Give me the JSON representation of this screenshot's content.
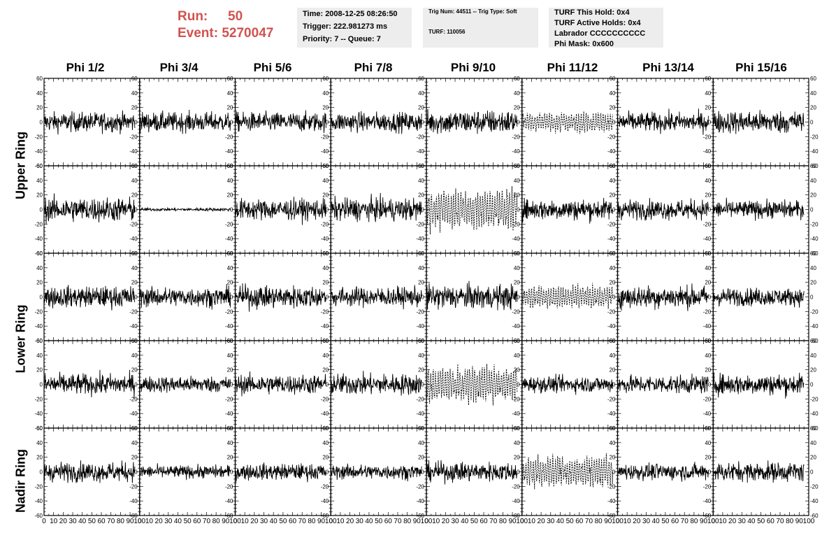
{
  "header": {
    "run_label": "Run:",
    "run_value": "50",
    "event_label": "Event:",
    "event_value": "5270047"
  },
  "info_time": {
    "line1": "Time: 2008-12-25 08:26:50",
    "line2": "Trigger: 222.981273 ms",
    "line3": "Priority: 7 -- Queue: 7"
  },
  "info_trig": {
    "line1": "Trig Num: 44511 -- Trig Type: Soft",
    "line2": "TURF: 110056"
  },
  "info_turf": {
    "line1": "TURF This Hold: 0x4",
    "line2": "TURF Active Holds: 0x4",
    "line3": "Labrador CCCCCCCCCC",
    "line4": "Phi Mask: 0x600"
  },
  "columns": [
    "Phi 1/2",
    "Phi 3/4",
    "Phi 5/6",
    "Phi 7/8",
    "Phi 9/10",
    "Phi 11/12",
    "Phi 13/14",
    "Phi 15/16"
  ],
  "row_labels": [
    "Upper Ring",
    "Lower Ring",
    "Nadir Ring"
  ],
  "colors": {
    "run_text": "#d0534f",
    "info_bg": "#ededed",
    "trace": "#000000"
  },
  "chart_data": {
    "type": "line",
    "description_rows": 5,
    "description_cols": 8,
    "x_range": [
      0,
      100
    ],
    "y_range": [
      -60,
      60
    ],
    "y_ticks": [
      -60,
      -40,
      -20,
      0,
      20,
      40,
      60
    ],
    "x_ticks": [
      0,
      10,
      20,
      30,
      40,
      50,
      60,
      70,
      80,
      90,
      100
    ],
    "x_tick_labels": [
      "0",
      "10",
      "20",
      "30",
      "40",
      "50",
      "60",
      "70",
      "80",
      "90",
      "100"
    ],
    "y_tick_labels": [
      "-60",
      "-40",
      "-20",
      "0",
      "20",
      "40",
      "60"
    ],
    "x_data_range": [
      0,
      95
    ],
    "amplitudes": [
      [
        12,
        12,
        12,
        12,
        15,
        11,
        12,
        14
      ],
      [
        15,
        2,
        13,
        14,
        22,
        13,
        12,
        11
      ],
      [
        13,
        12,
        14,
        12,
        15,
        12,
        14,
        11
      ],
      [
        13,
        10,
        12,
        13,
        20,
        10,
        11,
        13
      ],
      [
        12,
        8,
        10,
        9,
        12,
        17,
        10,
        12
      ]
    ],
    "dotted_panels": [
      [
        0,
        5
      ],
      [
        1,
        4
      ],
      [
        2,
        5
      ],
      [
        3,
        4
      ],
      [
        4,
        5
      ]
    ]
  }
}
